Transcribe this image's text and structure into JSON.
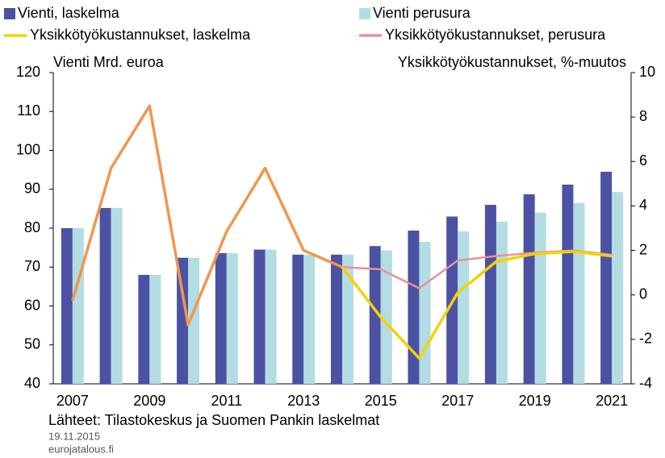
{
  "chart_data": {
    "type": "bar",
    "categories": [
      "2007",
      null,
      "2009",
      null,
      "2011",
      null,
      "2013",
      null,
      "2015",
      null,
      "2017",
      null,
      "2019",
      null,
      "2021"
    ],
    "y_label": "Vienti Mrd. euroa",
    "y2_label": "Yksikkötyökustannukset, %-muutos",
    "source": "Lähteet: Tilastokeskus ja Suomen Pankin laskelmat",
    "date": "19.11.2015",
    "site": "eurojatalous.fi",
    "ylim": [
      40,
      120
    ],
    "yticks": [
      40,
      50,
      60,
      70,
      80,
      90,
      100,
      110,
      120
    ],
    "y2lim": [
      -4,
      10
    ],
    "y2ticks": [
      -4,
      -2,
      0,
      2,
      4,
      6,
      8,
      10
    ],
    "series": [
      {
        "name": "Vienti, laskelma",
        "type": "bar",
        "color": "#4b52a3",
        "values": [
          80,
          85.2,
          68,
          72.4,
          73.6,
          74.5,
          73.2,
          73.2,
          75.4,
          79.4,
          83,
          86,
          88.7,
          91.2,
          94.5
        ]
      },
      {
        "name": "Vienti perusura",
        "type": "bar",
        "color": "#b3dde3",
        "values": [
          80,
          85.2,
          68,
          72.4,
          73.6,
          74.5,
          73.2,
          73.2,
          74.3,
          76.5,
          79.2,
          81.7,
          84,
          86.5,
          89.3
        ]
      },
      {
        "name": "Yksikkötyökustannukset, laskelma",
        "type": "line",
        "axis": "y2",
        "color": "#f5d200",
        "values": [
          null,
          null,
          null,
          null,
          null,
          null,
          null,
          1.25,
          -1.0,
          -2.85,
          0.1,
          1.5,
          1.85,
          1.95,
          1.75
        ]
      },
      {
        "name": "Yksikkötyökustannukset, perusura",
        "type": "line",
        "axis": "y2",
        "color": "#e8919a",
        "values": [
          null,
          null,
          null,
          null,
          null,
          null,
          null,
          1.25,
          1.15,
          0.3,
          1.55,
          1.75,
          1.9,
          2.0,
          1.8
        ]
      },
      {
        "type": "line",
        "axis": "y2",
        "color": "#f0964e",
        "values": [
          -0.26,
          5.7,
          8.5,
          -1.35,
          2.85,
          5.7,
          2.0,
          1.25,
          null,
          null,
          null,
          null,
          null,
          null,
          null
        ]
      }
    ]
  }
}
